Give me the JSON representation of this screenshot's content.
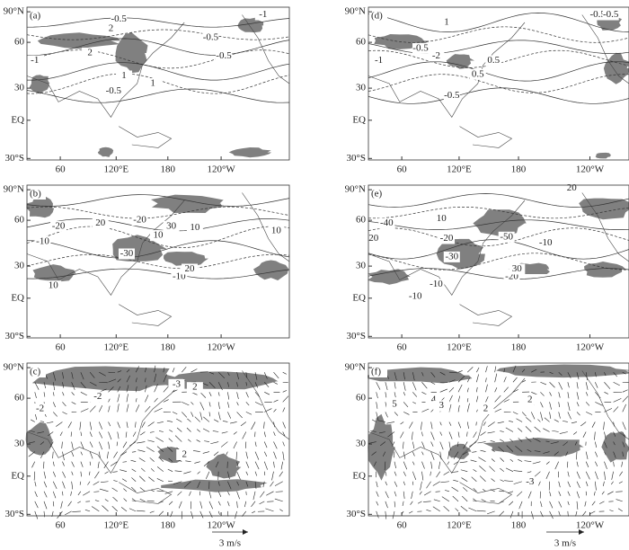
{
  "axes": {
    "yticks": [
      "90°N",
      "60",
      "30",
      "EQ",
      "30°S"
    ],
    "xticks": [
      "60",
      "120°E",
      "180",
      "120°W"
    ]
  },
  "panels": [
    {
      "label": "(a)",
      "contour_labels": [
        "-0.5",
        "-1",
        "-0.5",
        "2",
        "2",
        "1",
        "-1",
        "-0.5",
        "-0.5",
        "1"
      ]
    },
    {
      "label": "(b)",
      "contour_labels": [
        "-20",
        "-10",
        "-30",
        "10",
        "20",
        "30",
        "-10",
        "-20",
        "20",
        "10",
        "10",
        "10"
      ]
    },
    {
      "label": "(c)",
      "contour_labels": [
        "-3",
        "2",
        "-2",
        "-2",
        "2"
      ]
    },
    {
      "label": "(d)",
      "contour_labels": [
        "-0.5",
        "-0.5",
        "-1",
        "-2",
        "0.5",
        "-0.5",
        "-0.5",
        "0.5",
        "1"
      ]
    },
    {
      "label": "(e)",
      "contour_labels": [
        "-40",
        "20",
        "10",
        "-20",
        "-10",
        "20",
        "-50",
        "-30",
        "-10",
        "-20",
        "30",
        "-10"
      ]
    },
    {
      "label": "(f)",
      "contour_labels": [
        "5",
        "4",
        "3",
        "2",
        "2",
        "-3"
      ]
    }
  ],
  "reference_vector": "3 m/s"
}
